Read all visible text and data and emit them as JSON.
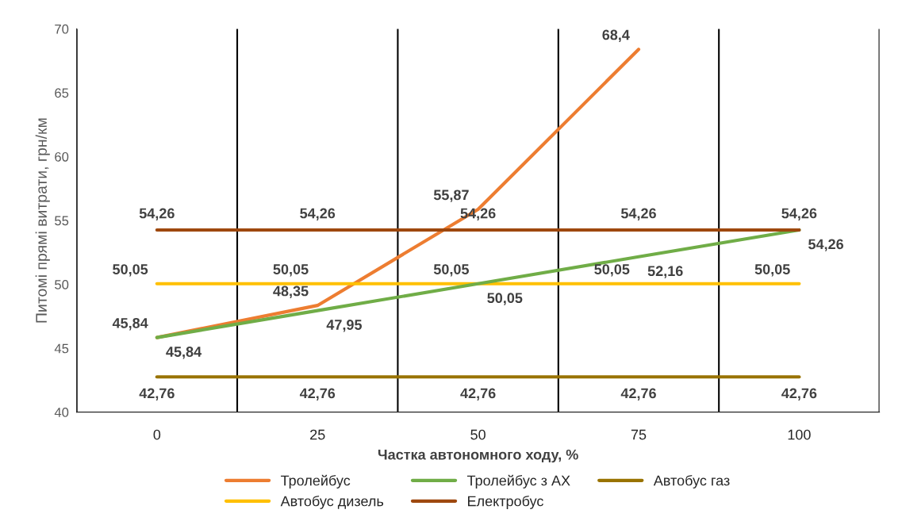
{
  "chart_data": {
    "type": "line",
    "xlabel": "Частка автономного ходу, %",
    "ylabel": "Питомі прямі витрати, грн/км",
    "categories": [
      "0",
      "25",
      "50",
      "75",
      "100"
    ],
    "series": [
      {
        "name": "Тролейбус",
        "color": "#ed7d31",
        "values": [
          45.84,
          48.35,
          55.87,
          68.4,
          null
        ],
        "value_labels": [
          "45,84",
          "48,35",
          "55,87",
          "68,4",
          null
        ]
      },
      {
        "name": "Автобус дизель",
        "color": "#ffc000",
        "values": [
          50.05,
          50.05,
          50.05,
          50.05,
          50.05
        ],
        "value_labels": [
          "50,05",
          "50,05",
          "50,05",
          "50,05",
          "50,05"
        ]
      },
      {
        "name": "Тролейбус з АХ",
        "color": "#70ad47",
        "values": [
          45.84,
          47.95,
          50.05,
          52.16,
          54.26
        ],
        "value_labels": [
          "45,84",
          "47,95",
          "50,05",
          "52,16",
          "54,26"
        ]
      },
      {
        "name": "Електробус",
        "color": "#9e480e",
        "values": [
          54.26,
          54.26,
          54.26,
          54.26,
          54.26
        ],
        "value_labels": [
          "54,26",
          "54,26",
          "54,26",
          "54,26",
          "54,26"
        ]
      },
      {
        "name": "Автобус газ",
        "color": "#997300",
        "values": [
          42.76,
          42.76,
          42.76,
          42.76,
          42.76
        ],
        "value_labels": [
          "42,76",
          "42,76",
          "42,76",
          "42,76",
          "42,76"
        ]
      }
    ],
    "ylim": [
      40,
      70
    ],
    "yticks": [
      40,
      45,
      50,
      55,
      60,
      65,
      70
    ],
    "grid": "x",
    "legend": "bottom",
    "marker": "none",
    "line_style": "solid"
  }
}
